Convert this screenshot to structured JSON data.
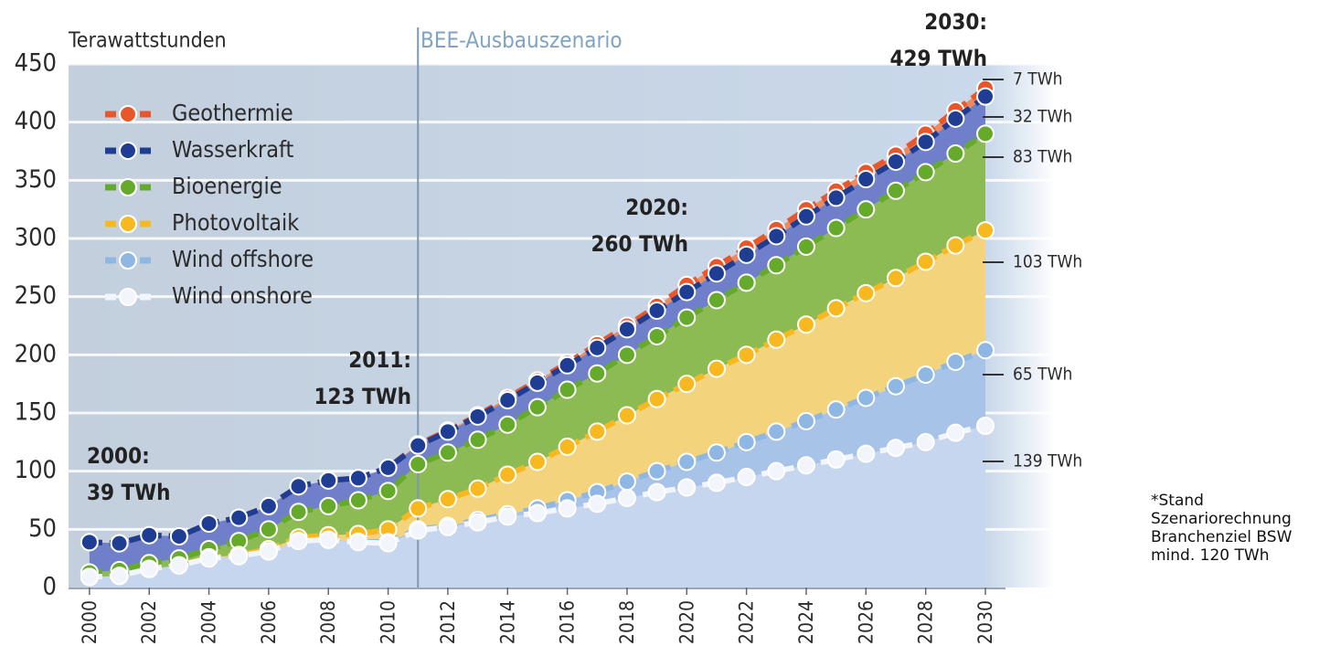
{
  "chart_data": {
    "type": "stacked_area_line",
    "y_label": "Terawattstunden",
    "scenario_label": "BEE-Ausbauszenario",
    "scenario_start_x": 2011,
    "x": [
      2000,
      2001,
      2002,
      2003,
      2004,
      2005,
      2006,
      2007,
      2008,
      2009,
      2010,
      2011,
      2012,
      2013,
      2014,
      2015,
      2016,
      2017,
      2018,
      2019,
      2020,
      2021,
      2022,
      2023,
      2024,
      2025,
      2026,
      2027,
      2028,
      2029,
      2030
    ],
    "xlim": [
      1999.3,
      2030
    ],
    "xticks": [
      2000,
      2002,
      2004,
      2006,
      2008,
      2010,
      2012,
      2014,
      2016,
      2018,
      2020,
      2022,
      2024,
      2026,
      2028,
      2030
    ],
    "ylim": [
      0,
      450
    ],
    "yticks": [
      0,
      50,
      100,
      150,
      200,
      250,
      300,
      350,
      400,
      450
    ],
    "grid": true,
    "series": [
      {
        "name": "Wind onshore",
        "color": "#f2f5fb",
        "area_color": "#c6d6ee",
        "end_label": "139 TWh",
        "values": [
          9,
          10,
          16,
          19,
          25,
          27,
          31,
          40,
          41,
          39,
          38,
          49,
          52,
          56,
          61,
          64,
          68,
          72,
          77,
          82,
          86,
          90,
          95,
          100,
          105,
          110,
          115,
          120,
          125,
          133,
          139
        ]
      },
      {
        "name": "Wind offshore",
        "color": "#8fb7e4",
        "area_color": "#a8c3e8",
        "end_label": "65 TWh",
        "values": [
          0,
          0,
          0,
          0,
          0,
          0,
          0,
          0,
          0,
          0.5,
          1,
          1,
          1,
          2,
          2,
          4,
          7,
          10,
          14,
          18,
          22,
          26,
          30,
          34,
          38,
          43,
          48,
          53,
          58,
          61,
          65
        ]
      },
      {
        "name": "Photovoltaik",
        "color": "#f8b820",
        "area_color": "#f3d47c",
        "end_label": "103 TWh",
        "values": [
          0,
          0,
          0,
          0,
          1,
          1,
          2,
          3,
          4,
          6.5,
          11,
          18,
          23,
          27,
          34,
          40,
          46,
          52,
          57,
          62,
          67,
          72,
          75,
          79,
          83,
          87,
          90,
          93,
          97,
          100,
          103
        ]
      },
      {
        "name": "Bioenergie",
        "color": "#66aa2c",
        "area_color": "#8cbb54",
        "end_label": "83 TWh",
        "values": [
          4,
          5,
          5,
          6,
          7,
          12,
          17,
          22,
          25,
          29,
          33,
          38,
          40,
          42,
          43,
          47,
          49,
          50,
          52,
          54,
          57,
          59,
          62,
          64,
          67,
          69,
          72,
          75,
          77,
          79,
          83
        ]
      },
      {
        "name": "Wasserkraft",
        "color": "#1e3d93",
        "area_color": "#6f7fc9",
        "end_label": "32 TWh",
        "values": [
          26,
          23,
          24,
          19,
          22,
          20,
          20,
          22,
          22,
          19,
          20,
          16,
          18,
          20,
          21,
          21,
          21,
          22,
          22,
          22,
          22,
          23,
          24,
          25,
          26,
          26,
          26,
          25,
          26,
          30,
          32
        ]
      },
      {
        "name": "Geothermie",
        "color": "#e8562a",
        "area_color": "#ee8a5e",
        "end_label": "7 TWh",
        "values": [
          0,
          0,
          0,
          0,
          0,
          0,
          0,
          0,
          0,
          0,
          0,
          1,
          1,
          1,
          2,
          2,
          2,
          3,
          3,
          4,
          6,
          6,
          6,
          6,
          6,
          6,
          6,
          6,
          7,
          7,
          7
        ]
      }
    ],
    "annotations": [
      {
        "lines": [
          "2000:",
          "39 TWh"
        ]
      },
      {
        "lines": [
          "2011:",
          "123 TWh"
        ]
      },
      {
        "lines": [
          "2020:",
          "260 TWh"
        ]
      },
      {
        "lines": [
          "2030:",
          "429 TWh"
        ]
      }
    ],
    "note_lines": [
      "*Stand",
      "Szenariorechnung",
      "Branchenziel BSW",
      "mind. 120 TWh"
    ]
  }
}
